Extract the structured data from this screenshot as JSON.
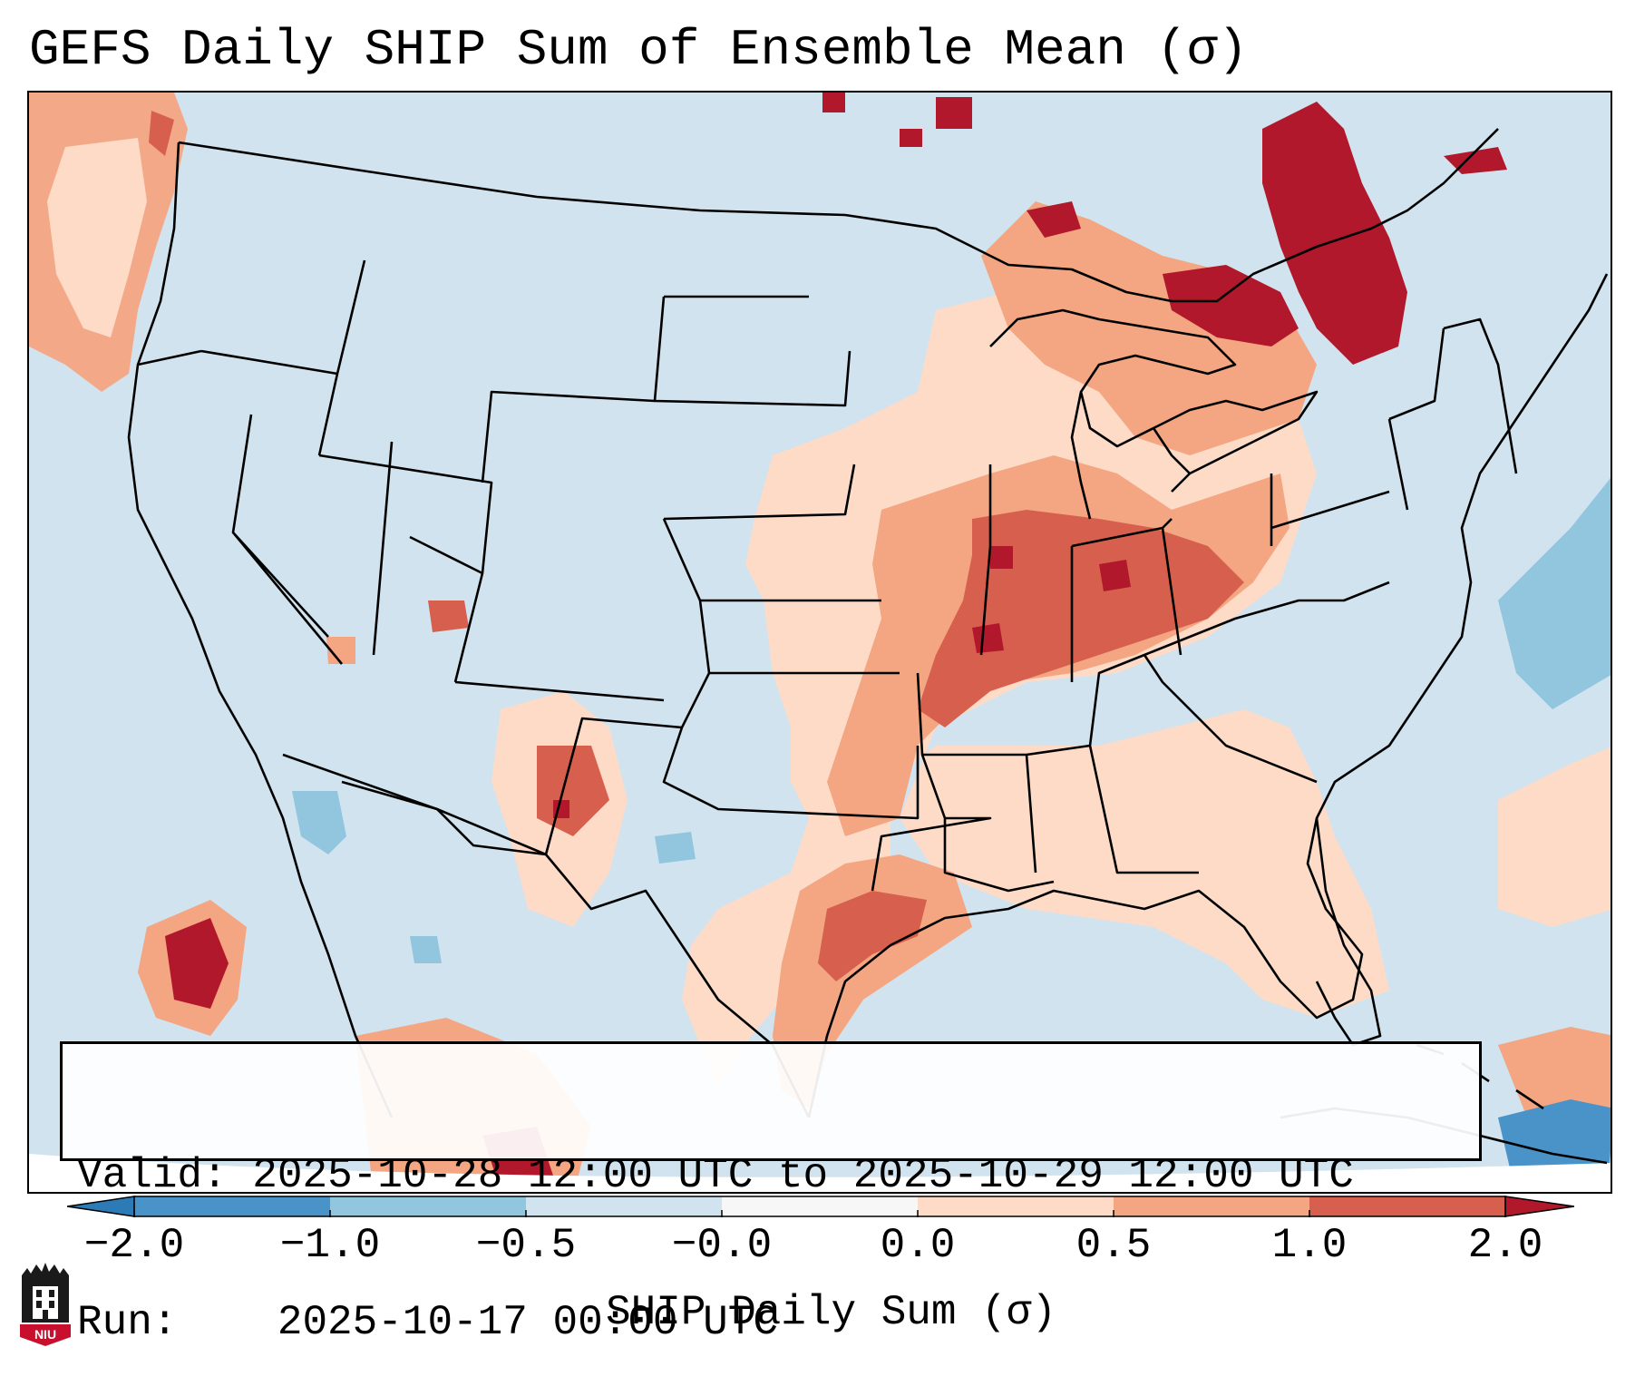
{
  "title": "GEFS Daily SHIP Sum of Ensemble Mean (σ)",
  "info": {
    "valid_label": "Valid:",
    "valid_value": "2025-10-28 12:00 UTC to 2025-10-29 12:00 UTC",
    "run_label": "Run:",
    "run_value": "2025-10-17 00:00 UTC"
  },
  "colorbar": {
    "label": "SHIP Daily Sum (σ)",
    "ticks": [
      "−2.0",
      "−1.0",
      "−0.5",
      "−0.0",
      "0.0",
      "0.5",
      "1.0",
      "2.0"
    ],
    "bins": [
      {
        "range": "< -2.0",
        "color": "#2c7bb6"
      },
      {
        "range": "-2.0 to -1.0",
        "color": "#4a93c8"
      },
      {
        "range": "-1.0 to -0.5",
        "color": "#92c5de"
      },
      {
        "range": "-0.5 to -0.0",
        "color": "#d0e3ef"
      },
      {
        "range": "-0.0 to 0.0",
        "color": "#f7f7f7"
      },
      {
        "range": "0.0 to 0.5",
        "color": "#fddbc7"
      },
      {
        "range": "0.5 to 1.0",
        "color": "#f4a582"
      },
      {
        "range": "1.0 to 2.0",
        "color": "#d6604d"
      },
      {
        "range": "> 2.0",
        "color": "#b2182b"
      }
    ]
  },
  "logo": {
    "text": "NIU",
    "color": "#c8102e"
  }
}
